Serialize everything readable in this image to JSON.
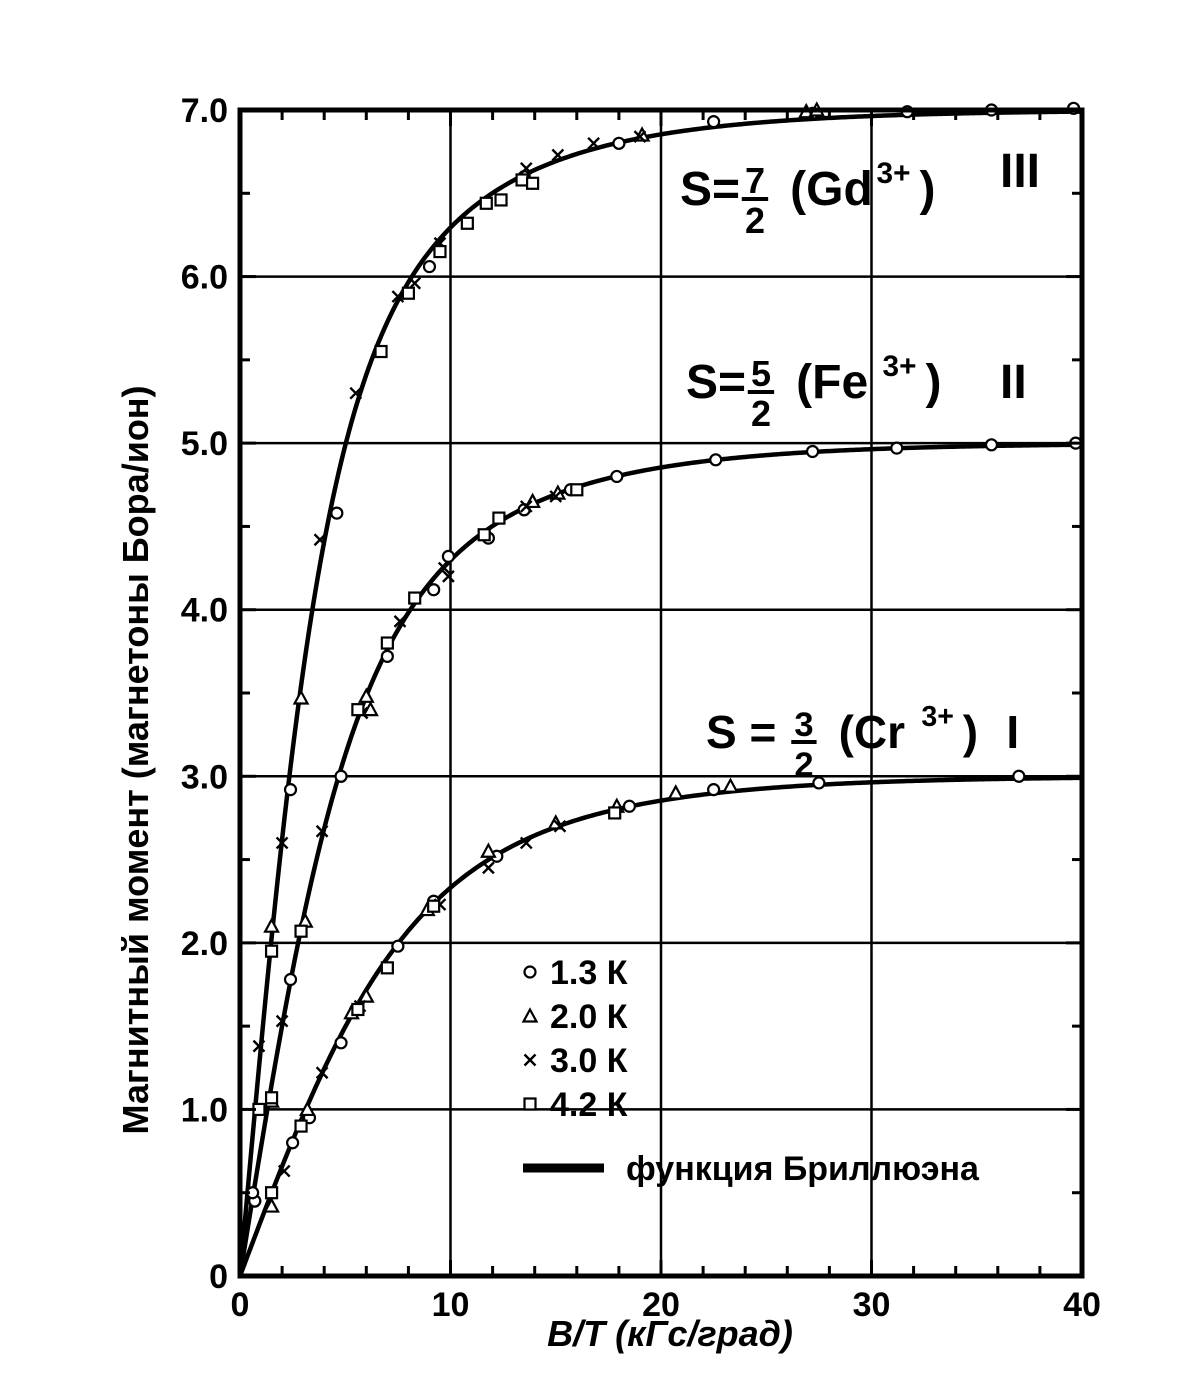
{
  "chart_data": {
    "type": "scatter",
    "xlabel": "B/T  (кГс/град)",
    "ylabel": "Магнитный момент (магнетоны Бора/ион)",
    "xlim": [
      0,
      40
    ],
    "ylim": [
      0,
      7
    ],
    "x_ticks": [
      {
        "value": 0,
        "label": "0"
      },
      {
        "value": 10,
        "label": "10"
      },
      {
        "value": 20,
        "label": "20"
      },
      {
        "value": 30,
        "label": "30"
      },
      {
        "value": 40,
        "label": "40"
      }
    ],
    "y_ticks": [
      {
        "value": 0,
        "label": "0"
      },
      {
        "value": 1,
        "label": "1.0"
      },
      {
        "value": 2,
        "label": "2.0"
      },
      {
        "value": 3,
        "label": "3.0"
      },
      {
        "value": 4,
        "label": "4.0"
      },
      {
        "value": 5,
        "label": "5.0"
      },
      {
        "value": 6,
        "label": "6.0"
      },
      {
        "value": 7,
        "label": "7.0"
      }
    ],
    "x_minor_step": 2,
    "y_minor_step": 0.5,
    "grid": true,
    "legend_position": "lower-middle",
    "legend": [
      {
        "marker": "circle",
        "label": "1.3 К"
      },
      {
        "marker": "triangle",
        "label": "2.0 К"
      },
      {
        "marker": "cross",
        "label": "3.0 К"
      },
      {
        "marker": "square",
        "label": "4.2 К"
      },
      {
        "marker": "line",
        "label": "функция Бриллюэна"
      }
    ],
    "curves": [
      {
        "id": "I",
        "label": {
          "prefix": "S =",
          "num": "3",
          "den": "2",
          "ion": "(Cr",
          "sup": "3+",
          "close": ")",
          "roman": "I"
        },
        "S": 1.5,
        "points": {
          "circle": [
            [
              0.7,
              0.45
            ],
            [
              2.5,
              0.8
            ],
            [
              3.3,
              0.95
            ],
            [
              4.8,
              1.4
            ],
            [
              5.5,
              1.6
            ],
            [
              7.5,
              1.98
            ],
            [
              9.2,
              2.25
            ],
            [
              12.2,
              2.52
            ],
            [
              18.5,
              2.82
            ],
            [
              22.5,
              2.92
            ],
            [
              27.5,
              2.96
            ],
            [
              37,
              3.0
            ]
          ],
          "triangle": [
            [
              1.5,
              0.42
            ],
            [
              3.2,
              1.0
            ],
            [
              5.3,
              1.58
            ],
            [
              6.0,
              1.68
            ],
            [
              8.9,
              2.2
            ],
            [
              11.8,
              2.55
            ],
            [
              15.0,
              2.72
            ],
            [
              17.9,
              2.82
            ],
            [
              20.7,
              2.9
            ],
            [
              23.3,
              2.94
            ]
          ],
          "cross": [
            [
              2.1,
              0.63
            ],
            [
              3.9,
              1.22
            ],
            [
              5.7,
              1.62
            ],
            [
              9.5,
              2.23
            ],
            [
              11.8,
              2.45
            ],
            [
              13.6,
              2.6
            ],
            [
              15.2,
              2.7
            ]
          ],
          "square": [
            [
              1.5,
              0.5
            ],
            [
              2.9,
              0.9
            ],
            [
              5.6,
              1.6
            ],
            [
              7.0,
              1.85
            ],
            [
              9.2,
              2.22
            ],
            [
              17.8,
              2.78
            ]
          ]
        }
      },
      {
        "id": "II",
        "label": {
          "prefix": "S=",
          "num": "5",
          "den": "2",
          "ion": "(Fe",
          "sup": "3+",
          "close": ")",
          "roman": "II"
        },
        "S": 2.5,
        "points": {
          "circle": [
            [
              0.7,
              0.45
            ],
            [
              2.4,
              1.78
            ],
            [
              4.8,
              3.0
            ],
            [
              7.0,
              3.72
            ],
            [
              9.2,
              4.12
            ],
            [
              9.9,
              4.32
            ],
            [
              11.8,
              4.43
            ],
            [
              13.5,
              4.6
            ],
            [
              15.7,
              4.72
            ],
            [
              17.9,
              4.8
            ],
            [
              22.6,
              4.9
            ],
            [
              27.2,
              4.95
            ],
            [
              31.2,
              4.97
            ],
            [
              35.7,
              4.99
            ],
            [
              39.7,
              5.0
            ]
          ],
          "triangle": [
            [
              1.5,
              1.05
            ],
            [
              3.1,
              2.13
            ],
            [
              6.0,
              3.48
            ],
            [
              6.2,
              3.4
            ],
            [
              13.9,
              4.65
            ],
            [
              15.1,
              4.7
            ]
          ],
          "cross": [
            [
              2.0,
              1.53
            ],
            [
              3.9,
              2.67
            ],
            [
              5.8,
              3.38
            ],
            [
              7.6,
              3.93
            ],
            [
              9.7,
              4.25
            ],
            [
              9.9,
              4.2
            ],
            [
              13.6,
              4.62
            ],
            [
              15.0,
              4.68
            ]
          ],
          "square": [
            [
              1.5,
              1.07
            ],
            [
              2.9,
              2.07
            ],
            [
              5.6,
              3.4
            ],
            [
              7.0,
              3.8
            ],
            [
              8.3,
              4.07
            ],
            [
              11.6,
              4.45
            ],
            [
              12.3,
              4.55
            ],
            [
              16.0,
              4.72
            ]
          ]
        }
      },
      {
        "id": "III",
        "label": {
          "prefix": "S=",
          "num": "7",
          "den": "2",
          "ion": "(Gd",
          "sup": "3+",
          "close": ")",
          "roman": "III"
        },
        "S": 3.5,
        "points": {
          "circle": [
            [
              0.6,
              0.5
            ],
            [
              2.4,
              2.92
            ],
            [
              4.6,
              4.58
            ],
            [
              9.0,
              6.06
            ],
            [
              13.5,
              6.6
            ],
            [
              18.0,
              6.8
            ],
            [
              22.5,
              6.93
            ],
            [
              27.2,
              6.98
            ],
            [
              31.7,
              6.99
            ],
            [
              35.7,
              7.0
            ],
            [
              39.6,
              7.01
            ]
          ],
          "triangle": [
            [
              1.5,
              2.1
            ],
            [
              2.9,
              3.47
            ],
            [
              19.1,
              6.85
            ],
            [
              26.9,
              6.99
            ],
            [
              27.4,
              7.0
            ]
          ],
          "cross": [
            [
              0.9,
              1.38
            ],
            [
              2.0,
              2.6
            ],
            [
              3.8,
              4.42
            ],
            [
              5.5,
              5.3
            ],
            [
              7.5,
              5.88
            ],
            [
              8.3,
              5.96
            ],
            [
              9.5,
              6.2
            ],
            [
              13.6,
              6.65
            ],
            [
              15.1,
              6.73
            ],
            [
              16.8,
              6.8
            ],
            [
              19.0,
              6.84
            ]
          ],
          "square": [
            [
              0.9,
              1.0
            ],
            [
              1.5,
              1.95
            ],
            [
              6.7,
              5.55
            ],
            [
              8.0,
              5.9
            ],
            [
              9.5,
              6.15
            ],
            [
              10.8,
              6.32
            ],
            [
              11.7,
              6.44
            ],
            [
              12.4,
              6.46
            ],
            [
              13.4,
              6.58
            ],
            [
              13.9,
              6.56
            ]
          ]
        }
      }
    ]
  }
}
